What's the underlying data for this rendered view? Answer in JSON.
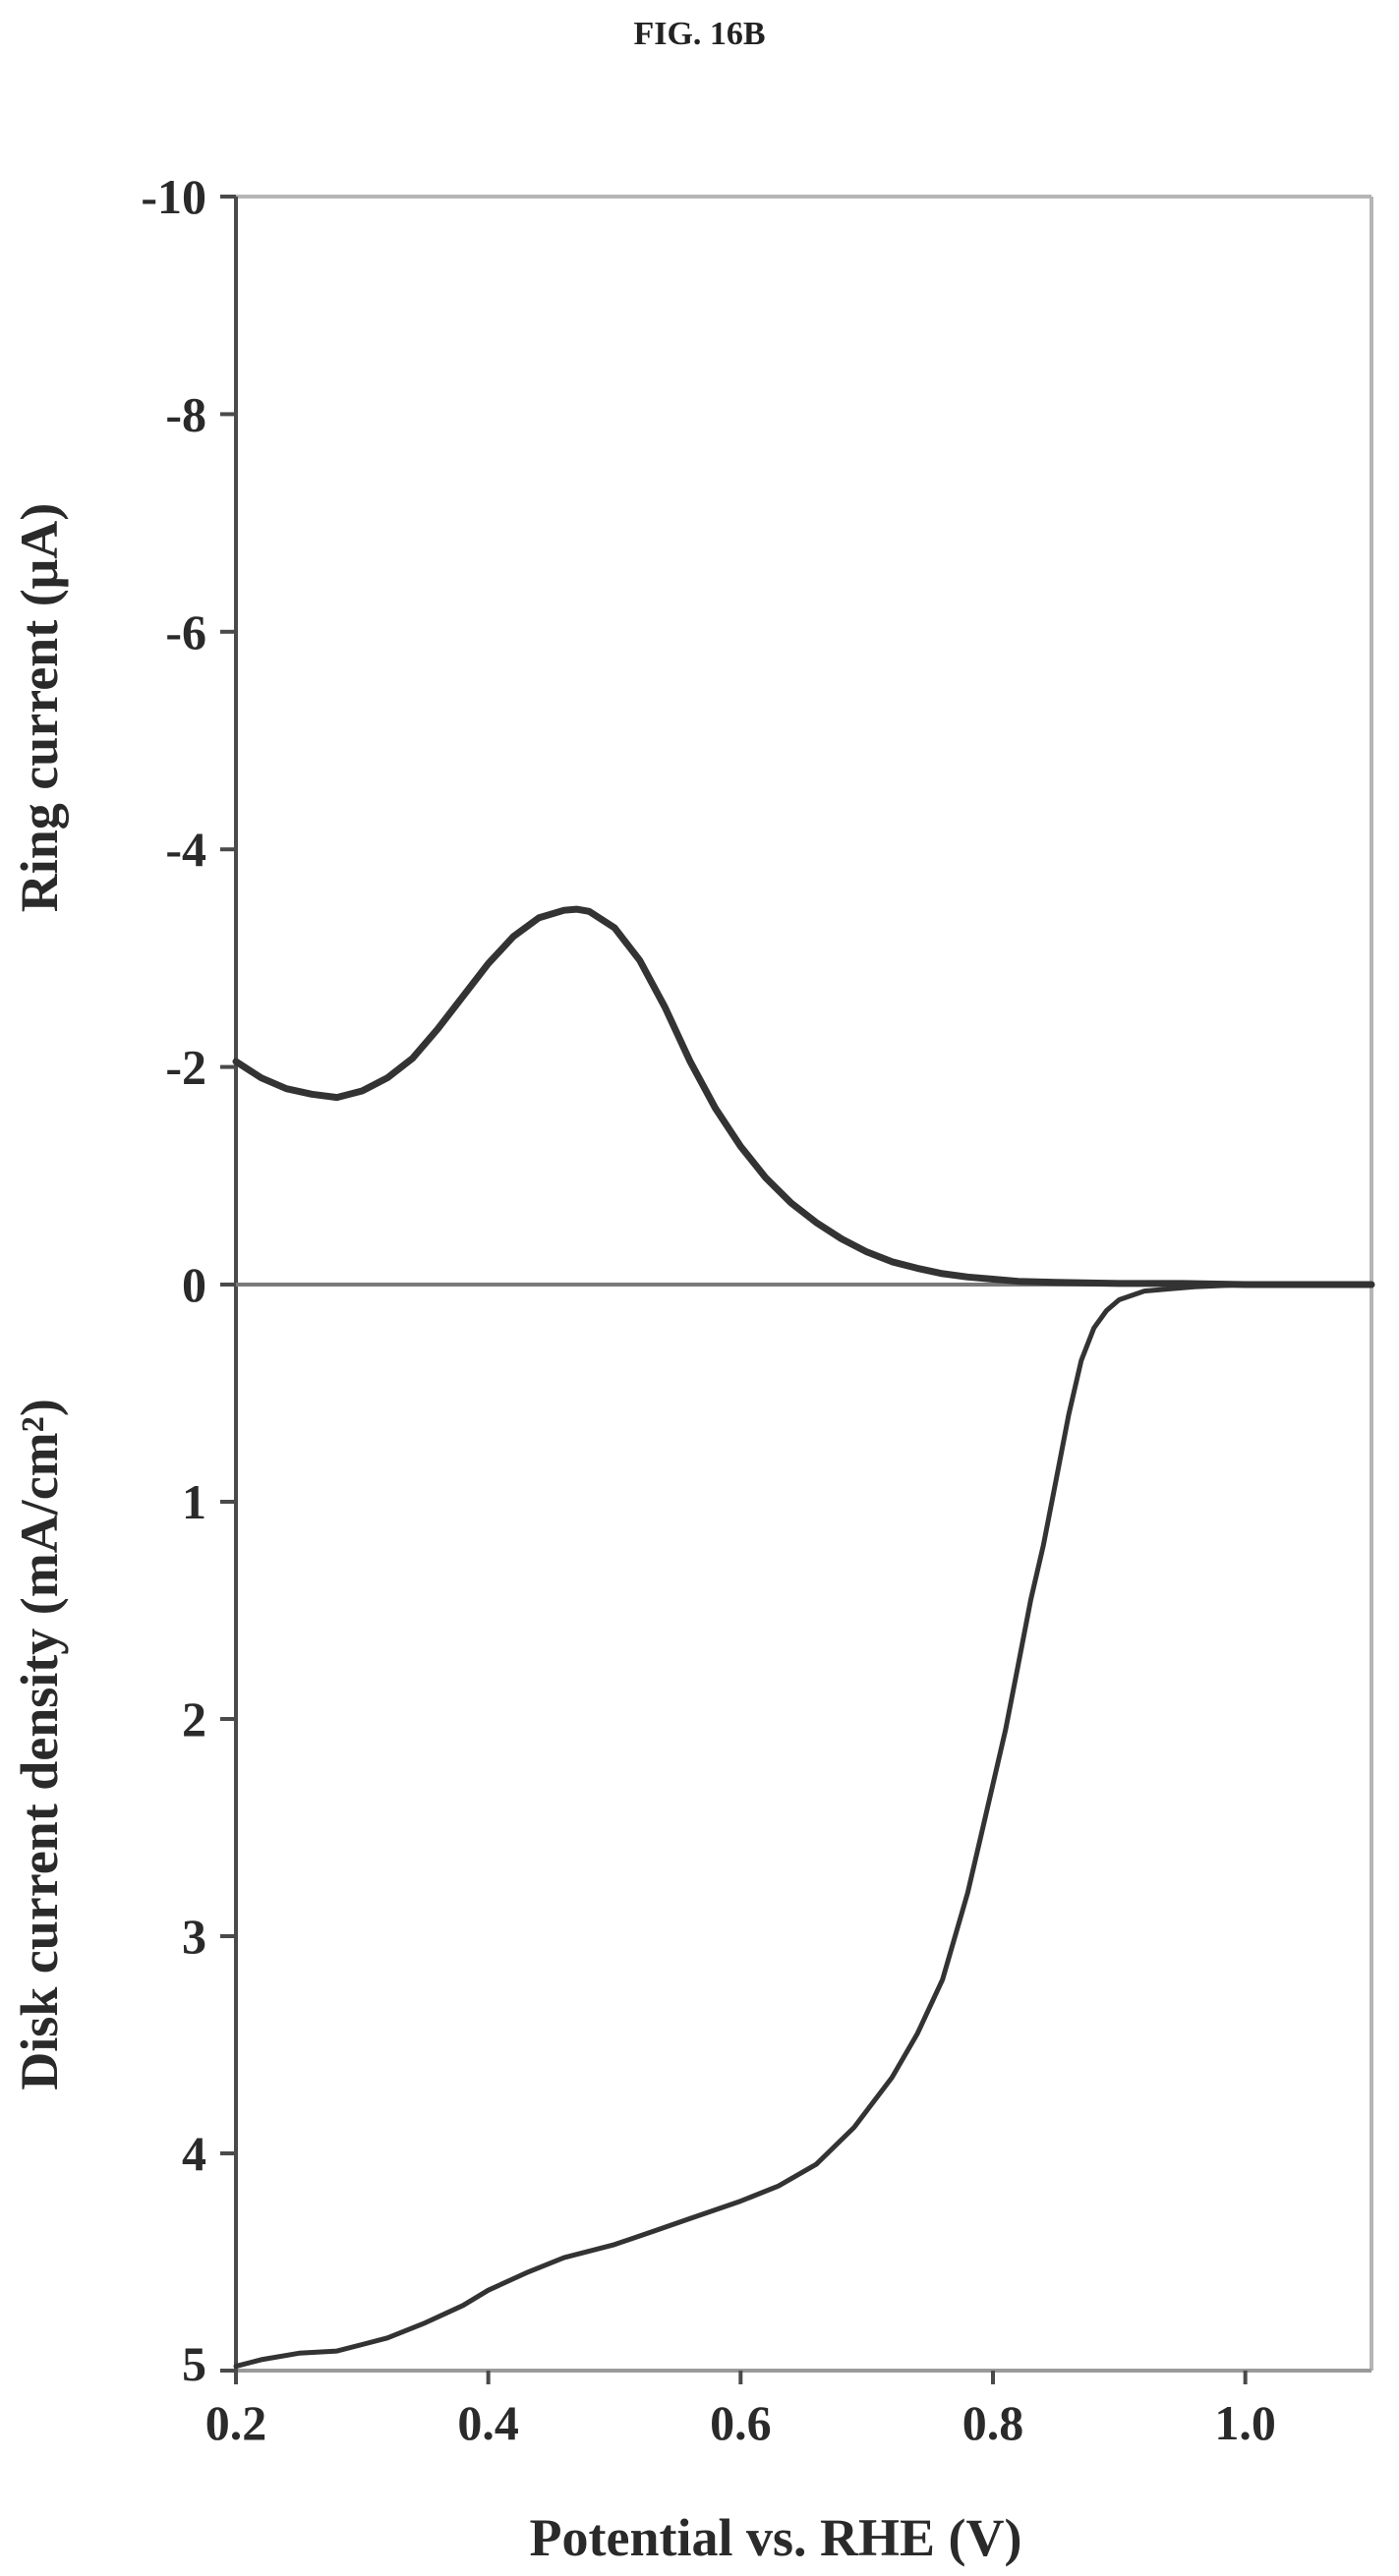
{
  "figure_label": "FIG. 16B",
  "chart_data": [
    {
      "type": "line",
      "panel": "top",
      "title": "",
      "xlabel": "",
      "ylabel": "Ring current (μA)",
      "xlim": [
        0.2,
        1.1
      ],
      "ylim": [
        0,
        -10
      ],
      "y_ticks": [
        -10,
        -8,
        -6,
        -4,
        -2,
        0
      ],
      "y_tick_labels": [
        "-10",
        "-8",
        "-6",
        "-4",
        "-2",
        "0"
      ],
      "grid": false,
      "series": [
        {
          "color": "#333333",
          "x": [
            0.2,
            0.22,
            0.24,
            0.26,
            0.28,
            0.3,
            0.32,
            0.34,
            0.36,
            0.38,
            0.4,
            0.42,
            0.44,
            0.46,
            0.47,
            0.48,
            0.5,
            0.52,
            0.54,
            0.56,
            0.58,
            0.6,
            0.62,
            0.64,
            0.66,
            0.68,
            0.7,
            0.72,
            0.74,
            0.76,
            0.78,
            0.8,
            0.82,
            0.85,
            0.9,
            0.95,
            1.0,
            1.05,
            1.1
          ],
          "y": [
            -2.05,
            -1.9,
            -1.8,
            -1.75,
            -1.72,
            -1.78,
            -1.9,
            -2.08,
            -2.35,
            -2.65,
            -2.95,
            -3.2,
            -3.37,
            -3.44,
            -3.45,
            -3.43,
            -3.28,
            -2.98,
            -2.55,
            -2.05,
            -1.62,
            -1.27,
            -0.98,
            -0.75,
            -0.57,
            -0.42,
            -0.3,
            -0.21,
            -0.15,
            -0.1,
            -0.07,
            -0.05,
            -0.03,
            -0.02,
            -0.01,
            -0.01,
            0.0,
            0.0,
            0.0
          ]
        }
      ]
    },
    {
      "type": "line",
      "panel": "bottom",
      "title": "",
      "xlabel": "Potential vs. RHE (V)",
      "ylabel": "Disk current density (mA/cm²)",
      "xlim": [
        0.2,
        1.1
      ],
      "ylim": [
        0,
        5
      ],
      "x_ticks": [
        0.2,
        0.4,
        0.6,
        0.8,
        1.0
      ],
      "x_tick_labels": [
        "0.2",
        "0.4",
        "0.6",
        "0.8",
        "1.0"
      ],
      "y_ticks": [
        1,
        2,
        3,
        4,
        5
      ],
      "y_tick_labels": [
        "1",
        "2",
        "3",
        "4",
        "5"
      ],
      "grid": false,
      "series": [
        {
          "color": "#333333",
          "x": [
            0.2,
            0.22,
            0.25,
            0.28,
            0.3,
            0.32,
            0.35,
            0.38,
            0.4,
            0.43,
            0.46,
            0.5,
            0.53,
            0.56,
            0.6,
            0.63,
            0.66,
            0.69,
            0.72,
            0.74,
            0.76,
            0.78,
            0.79,
            0.8,
            0.81,
            0.82,
            0.83,
            0.84,
            0.85,
            0.86,
            0.87,
            0.88,
            0.89,
            0.9,
            0.92,
            0.94,
            0.96,
            1.0,
            1.05,
            1.1
          ],
          "y": [
            4.98,
            4.95,
            4.92,
            4.91,
            4.88,
            4.85,
            4.78,
            4.7,
            4.63,
            4.55,
            4.48,
            4.42,
            4.36,
            4.3,
            4.22,
            4.15,
            4.05,
            3.88,
            3.65,
            3.45,
            3.2,
            2.8,
            2.55,
            2.3,
            2.05,
            1.75,
            1.45,
            1.2,
            0.9,
            0.6,
            0.35,
            0.2,
            0.12,
            0.07,
            0.03,
            0.02,
            0.01,
            0.0,
            0.0,
            0.0
          ]
        }
      ]
    }
  ]
}
